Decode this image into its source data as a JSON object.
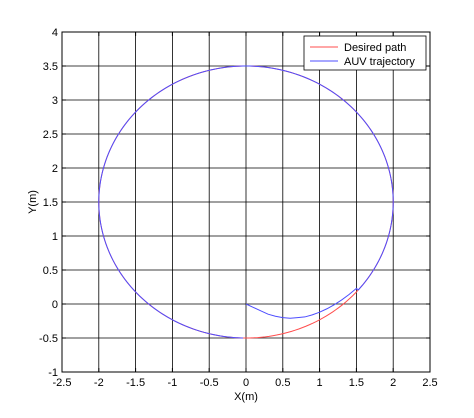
{
  "chart_data": {
    "type": "line",
    "title": "",
    "xlabel": "X(m)",
    "ylabel": "Y(m)",
    "xlim": [
      -2.5,
      2.5
    ],
    "ylim": [
      -1,
      4
    ],
    "xticks": [
      -2.5,
      -2,
      -1.5,
      -1,
      -0.5,
      0,
      0.5,
      1,
      1.5,
      2,
      2.5
    ],
    "yticks": [
      -1,
      -0.5,
      0,
      0.5,
      1,
      1.5,
      2,
      2.5,
      3,
      3.5,
      4
    ],
    "xtick_labels": [
      "-2.5",
      "-2",
      "-1.5",
      "-1",
      "-0.5",
      "0",
      "0.5",
      "1",
      "1.5",
      "2",
      "2.5"
    ],
    "ytick_labels": [
      "-1",
      "-0.5",
      "0",
      "0.5",
      "1",
      "1.5",
      "2",
      "2.5",
      "3",
      "3.5",
      "4"
    ],
    "grid": true,
    "legend_position": "top-right",
    "series": [
      {
        "name": "Desired path",
        "color": "#ff4d4d",
        "shape": "circle",
        "center": [
          0,
          1.5
        ],
        "radius": 2
      },
      {
        "name": "AUV trajectory",
        "color": "#4d4dff",
        "x": [
          0,
          0.1,
          0.2,
          0.3,
          0.4,
          0.5,
          0.6,
          0.7,
          0.8,
          0.9,
          1.0,
          1.1,
          1.2,
          1.3,
          1.4,
          1.5
        ],
        "y": [
          0,
          -0.05,
          -0.1,
          -0.15,
          -0.18,
          -0.2,
          -0.21,
          -0.2,
          -0.19,
          -0.16,
          -0.12,
          -0.07,
          -0.01,
          0.06,
          0.14,
          0.23
        ],
        "follows_path_after": true
      }
    ]
  }
}
